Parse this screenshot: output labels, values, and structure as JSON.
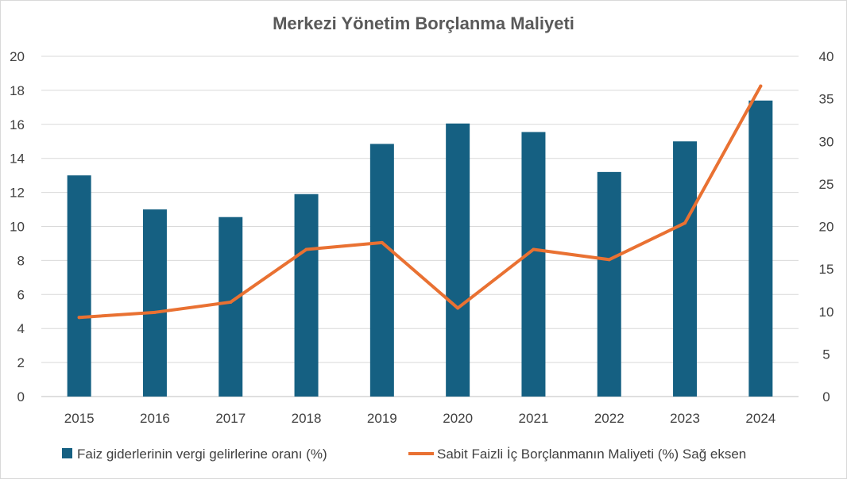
{
  "chart_data": {
    "type": "bar",
    "title": "Merkezi Yönetim  Borçlanma Maliyeti",
    "categories": [
      "2015",
      "2016",
      "2017",
      "2018",
      "2019",
      "2020",
      "2021",
      "2022",
      "2023",
      "2024"
    ],
    "series": [
      {
        "name": "Faiz giderlerinin vergi gelirlerine oranı (%)",
        "type": "bar",
        "axis": "left",
        "color": "#156082",
        "values": [
          13.0,
          11.0,
          10.55,
          11.9,
          14.85,
          16.05,
          15.55,
          13.2,
          15.0,
          17.4
        ]
      },
      {
        "name": "Sabit Faizli İç Borçlanmanın Maliyeti (%)  Sağ eksen",
        "type": "line",
        "axis": "right",
        "color": "#E97132",
        "values": [
          9.3,
          9.9,
          11.1,
          17.3,
          18.1,
          10.4,
          17.3,
          16.1,
          20.4,
          36.5
        ]
      }
    ],
    "y_left": {
      "min": 0,
      "max": 20,
      "step": 2,
      "ticks": [
        "0",
        "2",
        "4",
        "6",
        "8",
        "10",
        "12",
        "14",
        "16",
        "18",
        "20"
      ]
    },
    "y_right": {
      "min": 0,
      "max": 40,
      "step": 5,
      "ticks": [
        "0",
        "5",
        "10",
        "15",
        "20",
        "25",
        "30",
        "35",
        "40"
      ]
    },
    "grid": true,
    "legend": "bottom"
  }
}
